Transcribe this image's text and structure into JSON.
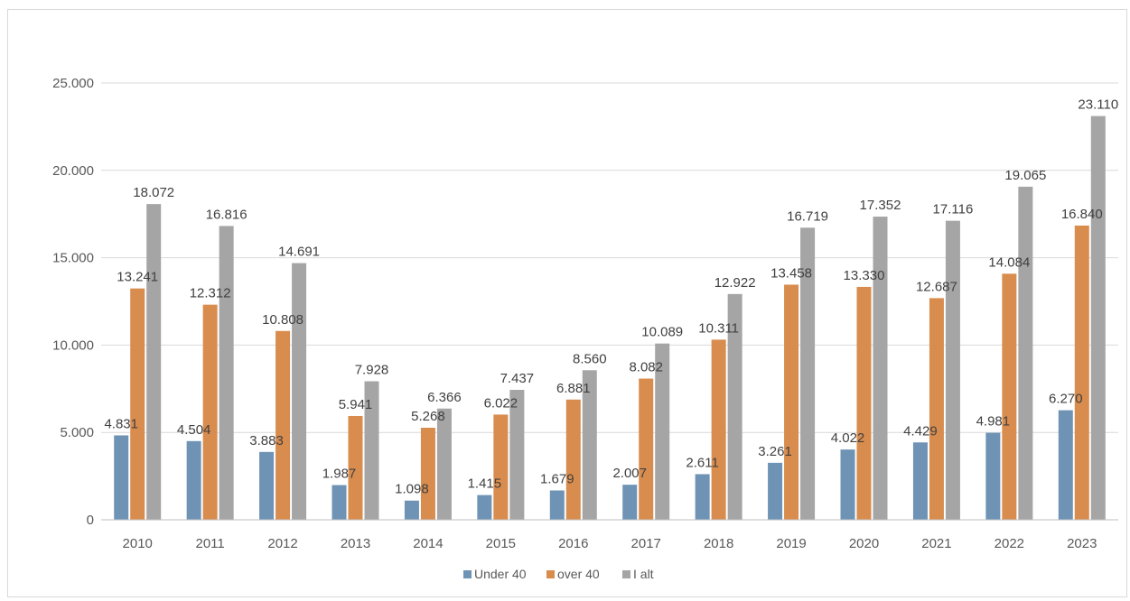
{
  "chart_data": {
    "type": "bar",
    "title": "",
    "xlabel": "",
    "ylabel": "",
    "ylim": [
      0,
      25000
    ],
    "yticks": [
      0,
      5000,
      10000,
      15000,
      20000,
      25000
    ],
    "ytick_labels": [
      "0",
      "5.000",
      "10.000",
      "15.000",
      "20.000",
      "25.000"
    ],
    "grid": "horizontal",
    "legend_position": "bottom",
    "categories": [
      "2010",
      "2011",
      "2012",
      "2013",
      "2014",
      "2015",
      "2016",
      "2017",
      "2018",
      "2019",
      "2020",
      "2021",
      "2022",
      "2023"
    ],
    "series": [
      {
        "name": "Under 40",
        "color": "#6f93b5",
        "values": [
          4831,
          4504,
          3883,
          1987,
          1098,
          1415,
          1679,
          2007,
          2611,
          3261,
          4022,
          4429,
          4981,
          6270
        ],
        "labels": [
          "4.831",
          "4.504",
          "3.883",
          "1.987",
          "1.098",
          "1.415",
          "1.679",
          "2.007",
          "2.611",
          "3.261",
          "4.022",
          "4.429",
          "4.981",
          "6.270"
        ]
      },
      {
        "name": "over 40",
        "color": "#d88c4e",
        "values": [
          13241,
          12312,
          10808,
          5941,
          5268,
          6022,
          6881,
          8082,
          10311,
          13458,
          13330,
          12687,
          14084,
          16840
        ],
        "labels": [
          "13.241",
          "12.312",
          "10.808",
          "5.941",
          "5.268",
          "6.022",
          "6.881",
          "8.082",
          "10.311",
          "13.458",
          "13.330",
          "12.687",
          "14.084",
          "16.840"
        ]
      },
      {
        "name": "I alt",
        "color": "#a5a5a5",
        "values": [
          18072,
          16816,
          14691,
          7928,
          6366,
          7437,
          8560,
          10089,
          12922,
          16719,
          17352,
          17116,
          19065,
          23110
        ],
        "labels": [
          "18.072",
          "16.816",
          "14.691",
          "7.928",
          "6.366",
          "7.437",
          "8.560",
          "10.089",
          "12.922",
          "16.719",
          "17.352",
          "17.116",
          "19.065",
          "23.110"
        ]
      }
    ]
  }
}
